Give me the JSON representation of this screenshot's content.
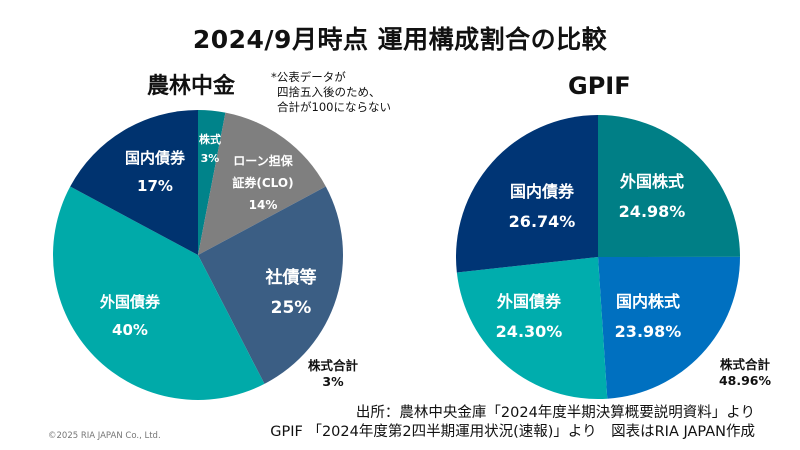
{
  "title": "2024/9月時点 運用構成割合の比較",
  "note_lines": [
    "*公表データが",
    "四捨五入後のため、",
    "合計が100にならない"
  ],
  "left_total": {
    "label": "株式合計",
    "value": "3%"
  },
  "right_total": {
    "label": "株式合計",
    "value": "48.96%"
  },
  "sources": [
    "出所：農林中央金庫「2024年度半期決算概要説明資料」より",
    "GPIF 「2024年度第2四半期運用状況(速報)」より　図表はRIA JAPAN作成"
  ],
  "copyright": "©2025 RIA JAPAN Co., Ltd.",
  "chart_data": [
    {
      "type": "pie",
      "title": "農林中金",
      "start": "top",
      "direction": "clockwise",
      "slices": [
        {
          "label": "株式",
          "value": 3,
          "display": "3%",
          "color": "#00838a"
        },
        {
          "label": "ローン担保証券(CLO)",
          "label_lines": [
            "ローン担保",
            "証券(CLO)"
          ],
          "value": 14,
          "display": "14%",
          "color": "#7f7f7f"
        },
        {
          "label": "社債等",
          "value": 25,
          "display": "25%",
          "color": "#3b5e84"
        },
        {
          "label": "外国債券",
          "value": 40,
          "display": "40%",
          "color": "#00aaa9"
        },
        {
          "label": "国内債券",
          "value": 17,
          "display": "17%",
          "color": "#00336f"
        }
      ]
    },
    {
      "type": "pie",
      "title": "GPIF",
      "start": "top",
      "direction": "clockwise",
      "slices": [
        {
          "label": "外国株式",
          "value": 24.98,
          "display": "24.98%",
          "color": "#007f86"
        },
        {
          "label": "国内株式",
          "value": 23.98,
          "display": "23.98%",
          "color": "#0070c0"
        },
        {
          "label": "外国債券",
          "value": 24.3,
          "display": "24.30%",
          "color": "#00adad"
        },
        {
          "label": "国内債券",
          "value": 26.74,
          "display": "26.74%",
          "color": "#003575"
        }
      ]
    }
  ]
}
